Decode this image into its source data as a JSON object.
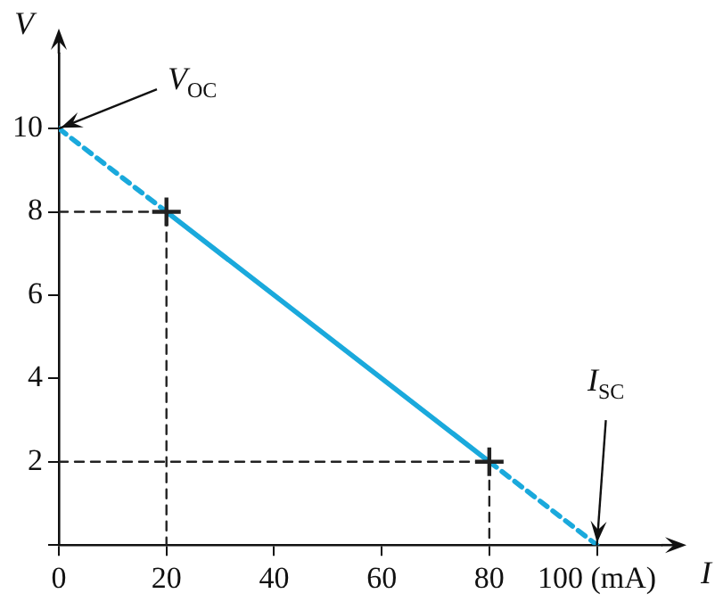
{
  "chart_data": {
    "type": "line",
    "xlabel": "I",
    "ylabel": "V",
    "xlim": [
      0,
      112
    ],
    "ylim": [
      0,
      11.8
    ],
    "xticks": [
      0,
      20,
      40,
      60,
      80,
      {
        "value": 100,
        "label": "100 (mA)"
      }
    ],
    "yticks": [
      {
        "value": 0,
        "label": null
      },
      2,
      4,
      6,
      8,
      10
    ],
    "grid": false,
    "legend": false,
    "marker": "none",
    "series": [
      {
        "x": [
          0,
          20
        ],
        "values": [
          10,
          8
        ],
        "color": "#1aa9dc",
        "line_style": "dashed"
      },
      {
        "x": [
          20,
          80
        ],
        "values": [
          8,
          2
        ],
        "color": "#1aa9dc",
        "line_style": "solid"
      },
      {
        "x": [
          80,
          100
        ],
        "values": [
          2,
          0
        ],
        "color": "#1aa9dc",
        "line_style": "dashed"
      },
      {
        "x": [
          0,
          20,
          20
        ],
        "values": [
          8,
          8,
          0
        ],
        "color": "#222222",
        "line_style": "dashed"
      },
      {
        "x": [
          0,
          80,
          80
        ],
        "values": [
          2,
          2,
          0
        ],
        "color": "#222222",
        "line_style": "dashed"
      },
      {
        "type": "scatter",
        "x": [
          20,
          80
        ],
        "values": [
          8,
          2
        ],
        "color": "#222222",
        "marker": "cross"
      }
    ],
    "annotations": [
      {
        "text": "V$_{OC}$",
        "x": 0,
        "y": 10
      },
      {
        "text": "I$_{SC}$",
        "x": 100,
        "y": 0
      }
    ]
  }
}
